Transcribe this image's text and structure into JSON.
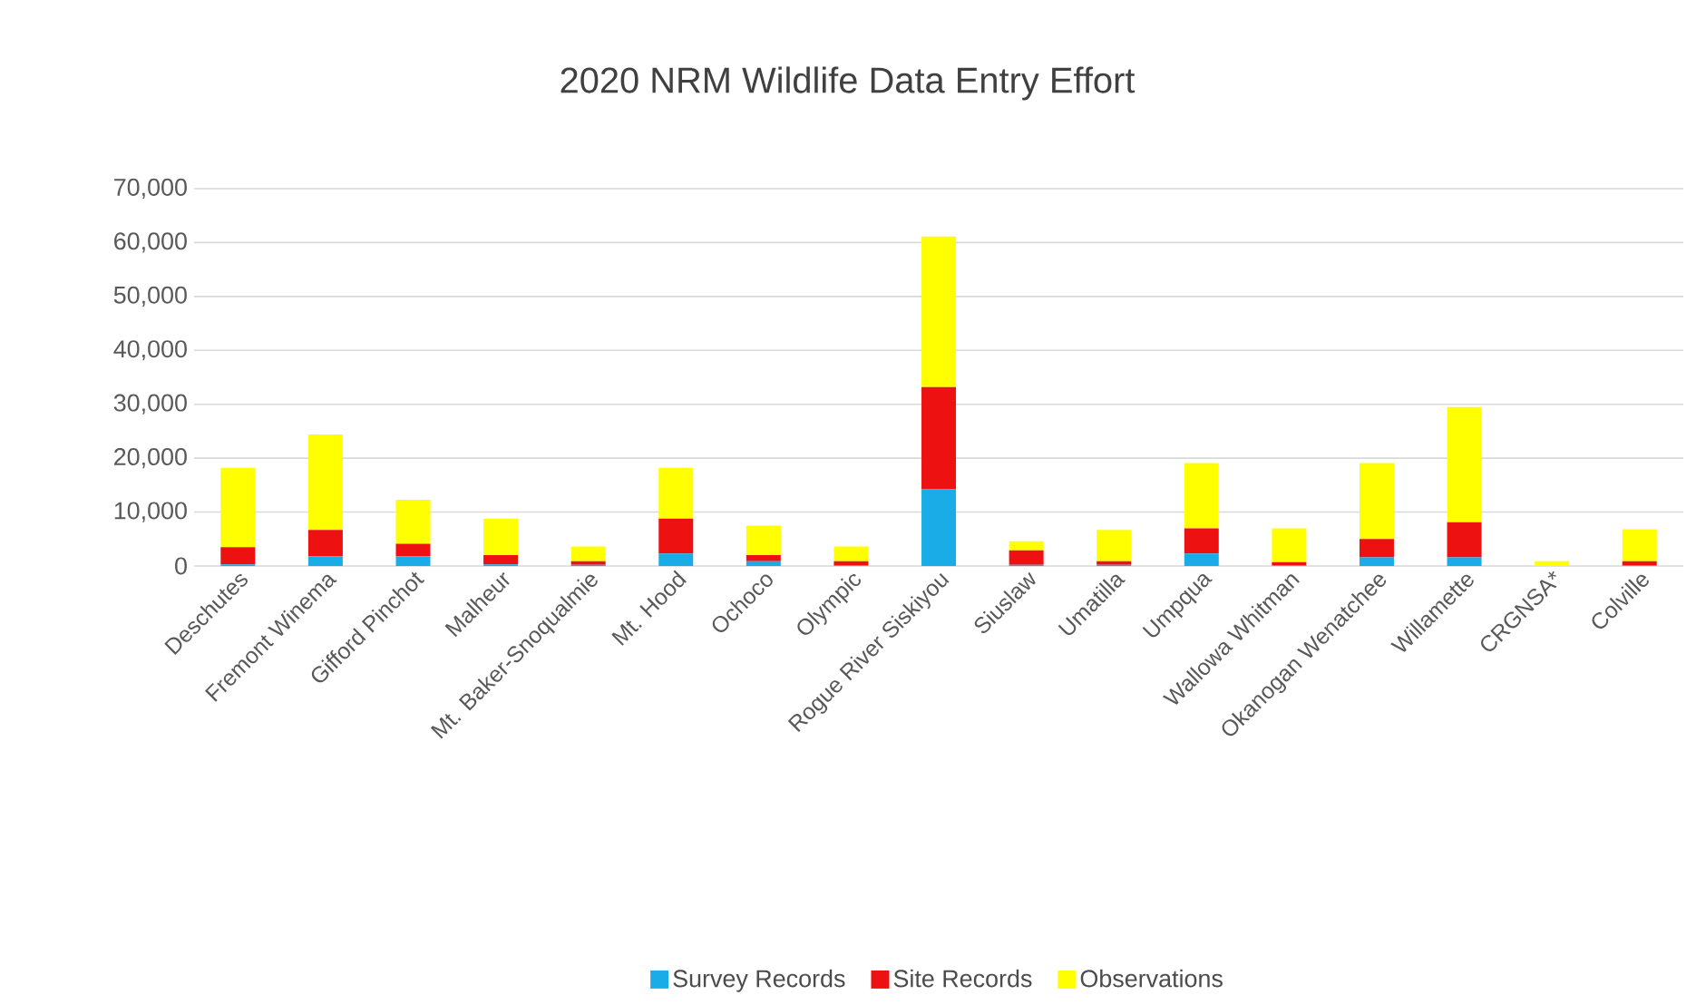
{
  "chart_data": {
    "type": "bar",
    "title": "2020 NRM Wildlife Data Entry Effort",
    "stacked": true,
    "categories": [
      "Deschutes",
      "Fremont Winema",
      "Gifford Pinchot",
      "Malheur",
      "Mt. Baker-Snoqualmie",
      "Mt. Hood",
      "Ochoco",
      "Olympic",
      "Rogue River Siskiyou",
      "Siuslaw",
      "Umatilla",
      "Umpqua",
      "Wallowa Whitman",
      "Okanogan Wenatchee",
      "Willamette",
      "CRGNSA*",
      "Colville"
    ],
    "series": [
      {
        "name": "Survey Records",
        "color": "#1aace6",
        "values": [
          300,
          1800,
          1800,
          300,
          200,
          2300,
          900,
          100,
          14200,
          200,
          200,
          2300,
          100,
          1600,
          1600,
          0,
          100
        ]
      },
      {
        "name": "Site Records",
        "color": "#ee1111",
        "values": [
          3200,
          4900,
          2300,
          1700,
          700,
          6500,
          1100,
          800,
          19000,
          2700,
          700,
          4700,
          600,
          3400,
          6500,
          0,
          800
        ]
      },
      {
        "name": "Observations",
        "color": "#ffff00",
        "values": [
          14700,
          17700,
          8200,
          6800,
          2700,
          9400,
          5500,
          2700,
          27900,
          1700,
          5800,
          12100,
          6300,
          14100,
          21400,
          900,
          5900
        ]
      }
    ],
    "ylim": [
      0,
      70000
    ],
    "yticks": [
      {
        "value": 0,
        "label": "0"
      },
      {
        "value": 10000,
        "label": "10,000"
      },
      {
        "value": 20000,
        "label": "20,000"
      },
      {
        "value": 30000,
        "label": "30,000"
      },
      {
        "value": 40000,
        "label": "40,000"
      },
      {
        "value": 50000,
        "label": "50,000"
      },
      {
        "value": 60000,
        "label": "60,000"
      },
      {
        "value": 70000,
        "label": "70,000"
      }
    ],
    "grid": "y",
    "legend": "bottom"
  }
}
